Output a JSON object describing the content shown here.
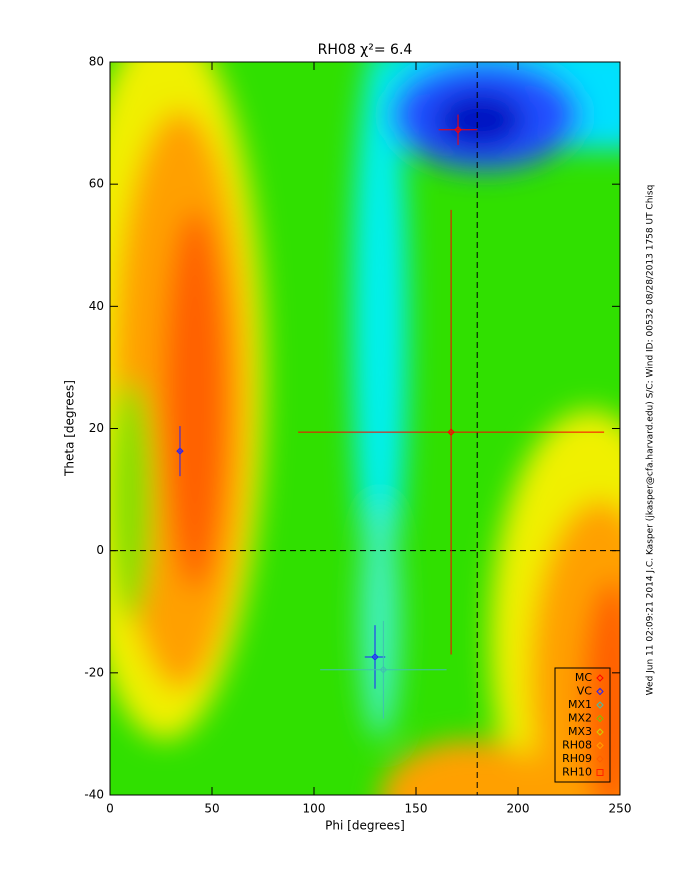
{
  "chart_data": {
    "type": "scatter",
    "title": "RH08 χ²=   6.4",
    "xlabel": "Phi [degrees]",
    "ylabel": "Theta [degrees]",
    "footer": "Wed Jun 11 02:09:21 2014   J.C. Kasper (jkasper@cfa.harvard.edu)   S/C: Wind ID: 00532 08/28/2013  1758 UT Chisq",
    "xlim": [
      0,
      250
    ],
    "xticks": [
      0,
      50,
      100,
      150,
      200,
      250
    ],
    "ylim": [
      -40,
      80
    ],
    "yticks": [
      -40,
      -20,
      0,
      20,
      40,
      60,
      80
    ],
    "vlines": [
      180
    ],
    "hlines": [
      0
    ],
    "legend": "lower right",
    "series": [
      {
        "name": "MC",
        "color": "#ff0000",
        "symbol": "diamond",
        "x": [
          170.6,
          167.2
        ],
        "y": [
          68.9,
          19.4
        ],
        "xerr": [
          9.5,
          75
        ],
        "yerr": [
          2.5,
          36.4
        ]
      },
      {
        "name": "VC",
        "color": "#2020ff",
        "symbol": "diamond",
        "x": [
          34.3,
          129.9
        ],
        "y": [
          16.3,
          -17.4
        ],
        "xerr": [
          1,
          5
        ],
        "yerr": [
          4.1,
          5.2
        ]
      },
      {
        "name": "MX1",
        "color": "#40c0b0",
        "symbol": "diamond",
        "x": [
          134
        ],
        "y": [
          -19.5
        ],
        "xerr": [
          31
        ],
        "yerr": [
          8
        ]
      },
      {
        "name": "MX2",
        "color": "#80c000",
        "symbol": "diamond",
        "x": [],
        "y": [],
        "xerr": [],
        "yerr": []
      },
      {
        "name": "MX3",
        "color": "#d0d000",
        "symbol": "diamond",
        "x": [],
        "y": [],
        "xerr": [],
        "yerr": []
      },
      {
        "name": "RH08",
        "color": "#ffa000",
        "symbol": "diamond",
        "x": [],
        "y": [],
        "xerr": [],
        "yerr": []
      },
      {
        "name": "RH09",
        "color": "#ff6000",
        "symbol": "diamond",
        "x": [],
        "y": [],
        "xerr": [],
        "yerr": []
      },
      {
        "name": "RH10",
        "color": "#ff2000",
        "symbol": "square",
        "x": [],
        "y": [],
        "xerr": [],
        "yerr": []
      }
    ]
  }
}
